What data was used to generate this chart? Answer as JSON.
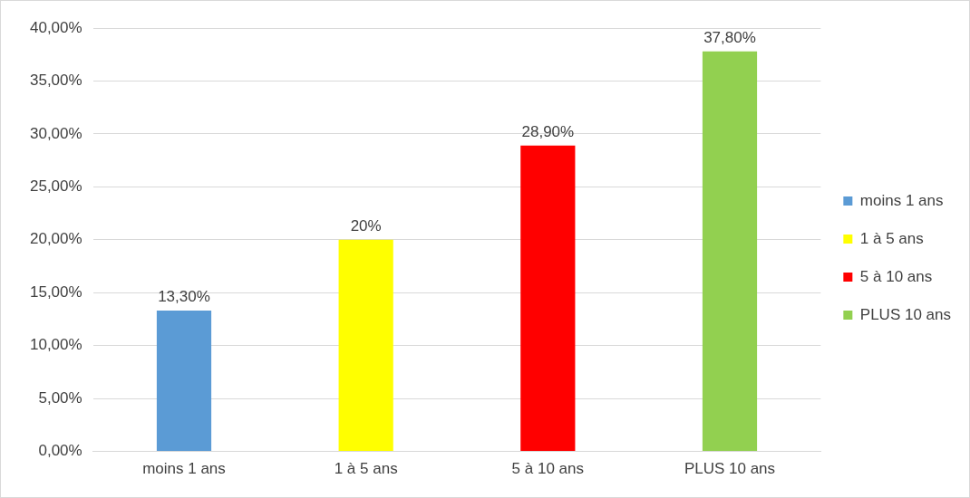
{
  "chart_data": {
    "type": "bar",
    "categories": [
      "moins 1 ans",
      "1 à 5 ans",
      "5 à 10 ans",
      "PLUS 10 ans"
    ],
    "series": [
      {
        "name": "moins 1 ans",
        "color": "#5b9bd5",
        "values": [
          13.3,
          null,
          null,
          null
        ],
        "value_labels": [
          "13,30%",
          null,
          null,
          null
        ]
      },
      {
        "name": "1 à 5 ans",
        "color": "#ffff00",
        "values": [
          null,
          20,
          null,
          null
        ],
        "value_labels": [
          null,
          "20%",
          null,
          null
        ]
      },
      {
        "name": "5 à 10 ans",
        "color": "#ff0000",
        "values": [
          null,
          null,
          28.9,
          null
        ],
        "value_labels": [
          null,
          null,
          "28,90%",
          null
        ]
      },
      {
        "name": "PLUS 10 ans",
        "color": "#92d050",
        "values": [
          null,
          null,
          null,
          37.8
        ],
        "value_labels": [
          null,
          null,
          null,
          "37,80%"
        ]
      }
    ],
    "ylim": [
      0,
      40
    ],
    "yticks": [
      {
        "value": 0,
        "label": "0,00%"
      },
      {
        "value": 5,
        "label": "5,00%"
      },
      {
        "value": 10,
        "label": "10,00%"
      },
      {
        "value": 15,
        "label": "15,00%"
      },
      {
        "value": 20,
        "label": "20,00%"
      },
      {
        "value": 25,
        "label": "25,00%"
      },
      {
        "value": 30,
        "label": "30,00%"
      },
      {
        "value": 35,
        "label": "35,00%"
      },
      {
        "value": 40,
        "label": "40,00%"
      }
    ],
    "grid": "y",
    "legend": "right"
  }
}
